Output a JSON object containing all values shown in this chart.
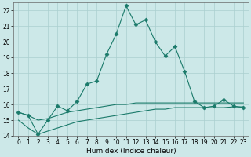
{
  "xlabel": "Humidex (Indice chaleur)",
  "x": [
    0,
    1,
    2,
    3,
    4,
    5,
    6,
    7,
    8,
    9,
    10,
    11,
    12,
    13,
    14,
    15,
    16,
    17,
    18,
    19,
    20,
    21,
    22,
    23
  ],
  "y_main": [
    15.5,
    15.3,
    14.1,
    15.0,
    15.9,
    15.6,
    16.2,
    17.3,
    17.5,
    19.2,
    20.5,
    22.3,
    21.1,
    21.4,
    20.0,
    19.1,
    19.7,
    18.1,
    16.2,
    15.8,
    15.9,
    16.3,
    15.9,
    15.8
  ],
  "y_lower": [
    15.0,
    14.5,
    14.1,
    14.3,
    14.5,
    14.7,
    14.9,
    15.0,
    15.1,
    15.2,
    15.3,
    15.4,
    15.5,
    15.6,
    15.7,
    15.7,
    15.8,
    15.8,
    15.8,
    15.8,
    15.8,
    15.8,
    15.85,
    15.85
  ],
  "y_upper": [
    15.5,
    15.3,
    15.0,
    15.1,
    15.3,
    15.5,
    15.6,
    15.7,
    15.8,
    15.9,
    16.0,
    16.0,
    16.1,
    16.1,
    16.1,
    16.1,
    16.1,
    16.1,
    16.1,
    16.1,
    16.1,
    16.1,
    16.1,
    16.1
  ],
  "line_color": "#1a7a6a",
  "bg_color": "#cce8e8",
  "grid_color": "#aacfcf",
  "ylim": [
    14,
    22.5
  ],
  "yticks": [
    14,
    15,
    16,
    17,
    18,
    19,
    20,
    21,
    22
  ],
  "xticks": [
    0,
    1,
    2,
    3,
    4,
    5,
    6,
    7,
    8,
    9,
    10,
    11,
    12,
    13,
    14,
    15,
    16,
    17,
    18,
    19,
    20,
    21,
    22,
    23
  ],
  "marker": "D",
  "markersize": 2.5,
  "linewidth": 0.8,
  "tick_fontsize": 5.5,
  "xlabel_fontsize": 6.5
}
